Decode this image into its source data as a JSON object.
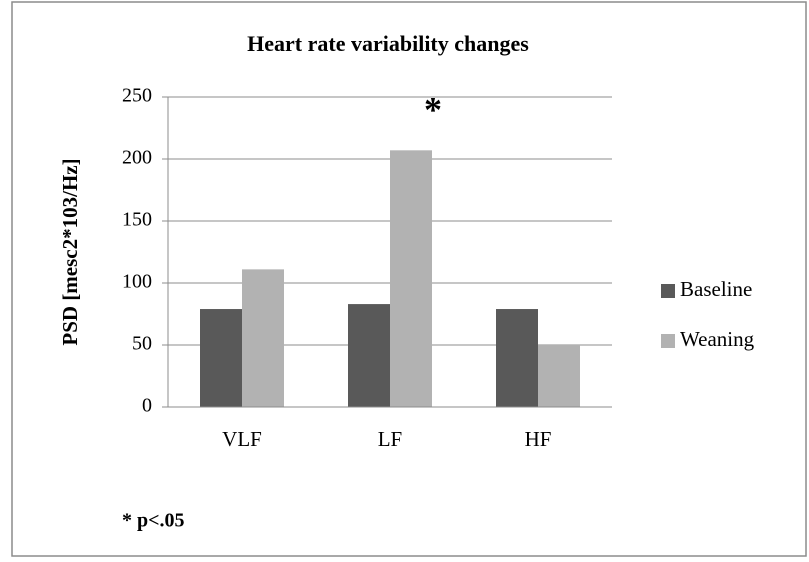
{
  "chart_data": {
    "type": "bar",
    "title": "Heart rate variability changes",
    "y_label": "PSD [mesc2*103/Hz]",
    "categories": [
      "VLF",
      "LF",
      "HF"
    ],
    "series": [
      {
        "name": "Baseline",
        "color": "#595959",
        "values": [
          79,
          83,
          79
        ]
      },
      {
        "name": "Weaning",
        "color": "#b2b2b2",
        "values": [
          111,
          207,
          50
        ]
      }
    ],
    "ylim": [
      0,
      250
    ],
    "yticks": [
      0,
      50,
      100,
      150,
      200,
      250
    ],
    "grid": true,
    "legend": "right",
    "significance_marker": "*",
    "footnote": "* p<.05"
  }
}
